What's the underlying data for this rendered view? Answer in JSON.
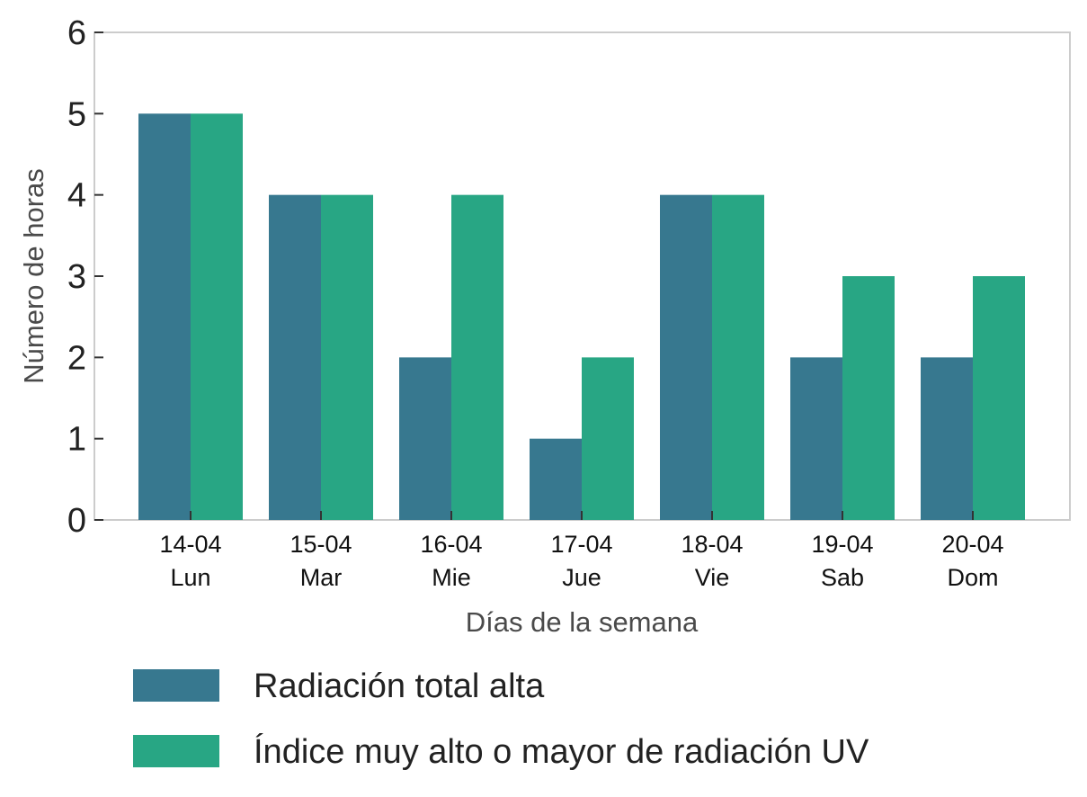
{
  "chart_data": {
    "type": "bar",
    "categories": [
      [
        "14-04",
        "Lun"
      ],
      [
        "15-04",
        "Mar"
      ],
      [
        "16-04",
        "Mie"
      ],
      [
        "17-04",
        "Jue"
      ],
      [
        "18-04",
        "Vie"
      ],
      [
        "19-04",
        "Sab"
      ],
      [
        "20-04",
        "Dom"
      ]
    ],
    "series": [
      {
        "name": "Radiación total alta",
        "color": "#37788f",
        "values": [
          5,
          4,
          2,
          1,
          4,
          2,
          2
        ]
      },
      {
        "name": "Índice muy alto o mayor de radiación UV",
        "color": "#28a684",
        "values": [
          5,
          4,
          4,
          2,
          4,
          3,
          3
        ]
      }
    ],
    "xlabel": "Días de la semana",
    "ylabel": "Número de horas",
    "ylim": [
      0,
      6
    ],
    "yticks": [
      0,
      1,
      2,
      3,
      4,
      5,
      6
    ],
    "grid": false,
    "legend_position": "bottom"
  }
}
